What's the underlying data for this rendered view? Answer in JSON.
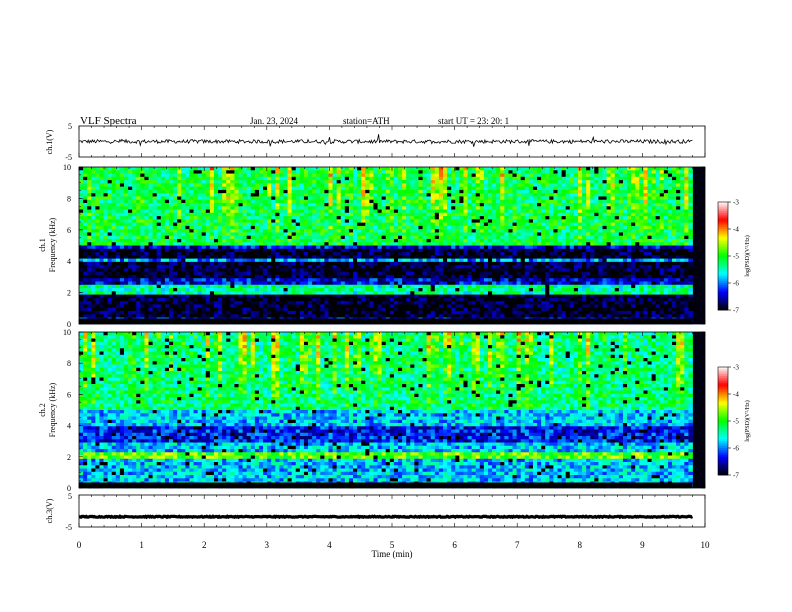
{
  "header": {
    "title": "VLF  Spectra",
    "date": "Jan. 23, 2024",
    "station": "station=ATH",
    "start": "start  UT  =   23: 20: 1"
  },
  "colorbar": {
    "label": "log(PSD)(V²/Hz)",
    "ticks": [
      "-3",
      "-4",
      "-5",
      "-6",
      "-7"
    ],
    "colors": [
      "#ffffff",
      "#ff0000",
      "#ffff00",
      "#00ff00",
      "#00ffff",
      "#0000ff",
      "#000000"
    ]
  },
  "chart_data": [
    {
      "type": "line",
      "name": "ch1-waveform",
      "ylabel": "ch.1(V)",
      "ylim": [
        -5,
        5
      ],
      "yticks": [
        "5",
        "-5"
      ],
      "xlim": [
        0,
        10
      ],
      "approx_level": 0,
      "approx_noise": 0.6
    },
    {
      "type": "heatmap",
      "name": "ch1-spectrogram",
      "ylabel_top": "ch.1",
      "ylabel": "Frequency  (kHz)",
      "ylim": [
        0,
        10
      ],
      "yticks": [
        "10",
        "8",
        "6",
        "4",
        "2",
        "0"
      ],
      "xlim": [
        0,
        10
      ],
      "data_end_min": 9.8,
      "zlim": [
        -7,
        -3
      ],
      "features": {
        "high_band_level": -5.2,
        "low_band_level": -6.4,
        "bright_line_khz": [
          2.0,
          2.3,
          4.1
        ],
        "dark_band_khz": [
          [
            3.0,
            4.8
          ],
          [
            0.5,
            1.8
          ]
        ]
      }
    },
    {
      "type": "heatmap",
      "name": "ch2-spectrogram",
      "ylabel_top": "ch.2",
      "ylabel": "Frequency  (kHz)",
      "ylim": [
        0,
        10
      ],
      "yticks": [
        "10",
        "8",
        "6",
        "4",
        "2",
        "0"
      ],
      "xlim": [
        0,
        10
      ],
      "data_end_min": 9.8,
      "zlim": [
        -7,
        -3
      ],
      "features": {
        "high_band_level": -5.3,
        "low_band_level": -5.8,
        "bright_line_khz": [
          2.0,
          2.2
        ],
        "dark_band_khz": [
          [
            3.0,
            4.0
          ]
        ]
      }
    },
    {
      "type": "line",
      "name": "ch3-waveform",
      "ylabel": "ch.3(V)",
      "ylim": [
        -5,
        5
      ],
      "yticks": [
        "5",
        "-5"
      ],
      "xlim": [
        0,
        10
      ],
      "approx_level": -1.8,
      "approx_noise": 0.15
    }
  ],
  "xaxis": {
    "label": "Time  (min)",
    "ticks": [
      "0",
      "1",
      "2",
      "3",
      "4",
      "5",
      "6",
      "7",
      "8",
      "9",
      "10"
    ]
  }
}
